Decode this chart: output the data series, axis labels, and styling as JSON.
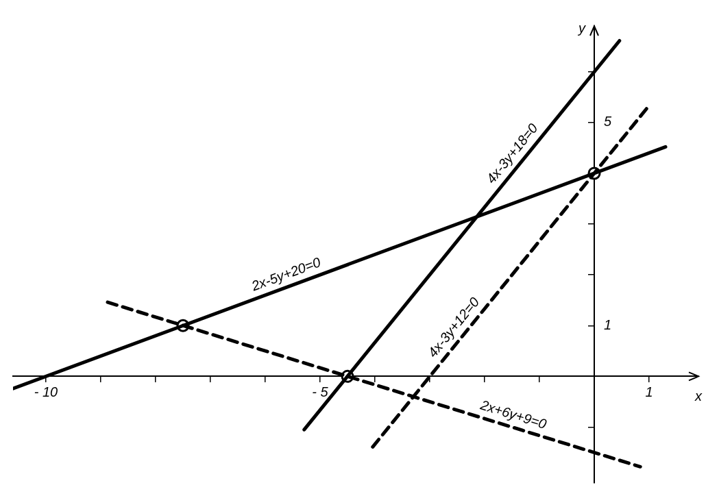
{
  "chart_data": {
    "type": "line",
    "xlabel": "x",
    "ylabel": "y",
    "xlim": [
      -10.6,
      1.9
    ],
    "ylim": [
      -2.1,
      6.9
    ],
    "xticks": [
      {
        "value": -10,
        "label": "- 10"
      },
      {
        "value": -9,
        "label": null
      },
      {
        "value": -8,
        "label": null
      },
      {
        "value": -7,
        "label": null
      },
      {
        "value": -6,
        "label": null
      },
      {
        "value": -5,
        "label": "- 5"
      },
      {
        "value": -4,
        "label": null
      },
      {
        "value": -3,
        "label": null
      },
      {
        "value": -2,
        "label": null
      },
      {
        "value": -1,
        "label": null
      },
      1
    ],
    "yticks": [
      {
        "value": -1,
        "label": null
      },
      1,
      {
        "value": 2,
        "label": null
      },
      {
        "value": 3,
        "label": null
      },
      {
        "value": 4,
        "label": null
      },
      5,
      {
        "value": 6,
        "label": null
      }
    ],
    "grid": false,
    "legend": false,
    "series": [
      {
        "name": "2x-5y+20=0",
        "color": "#000000",
        "line_style": "solid",
        "marker": "none",
        "x": [
          -10.6,
          1.3
        ],
        "values": [
          -0.24,
          4.52
        ]
      },
      {
        "name": "4x-3y+18=0",
        "color": "#000000",
        "line_style": "solid",
        "marker": "none",
        "x": [
          -5.29,
          0.46
        ],
        "values": [
          -1.05,
          6.61
        ]
      },
      {
        "name": "4x-3y+12=0",
        "color": "#000000",
        "line_style": "dashed",
        "marker": "none",
        "x": [
          -4.04,
          0.96
        ],
        "values": [
          -1.39,
          5.28
        ]
      },
      {
        "name": "2x+6y+9=0",
        "color": "#000000",
        "line_style": "dashed",
        "marker": "none",
        "x": [
          -8.875,
          0.84
        ],
        "values": [
          1.46,
          -1.78
        ]
      },
      {
        "type": "scatter",
        "color": "#000000",
        "marker": "circle",
        "x": [
          -7.5,
          -4.5,
          0
        ],
        "values": [
          1,
          0,
          4
        ]
      }
    ]
  }
}
